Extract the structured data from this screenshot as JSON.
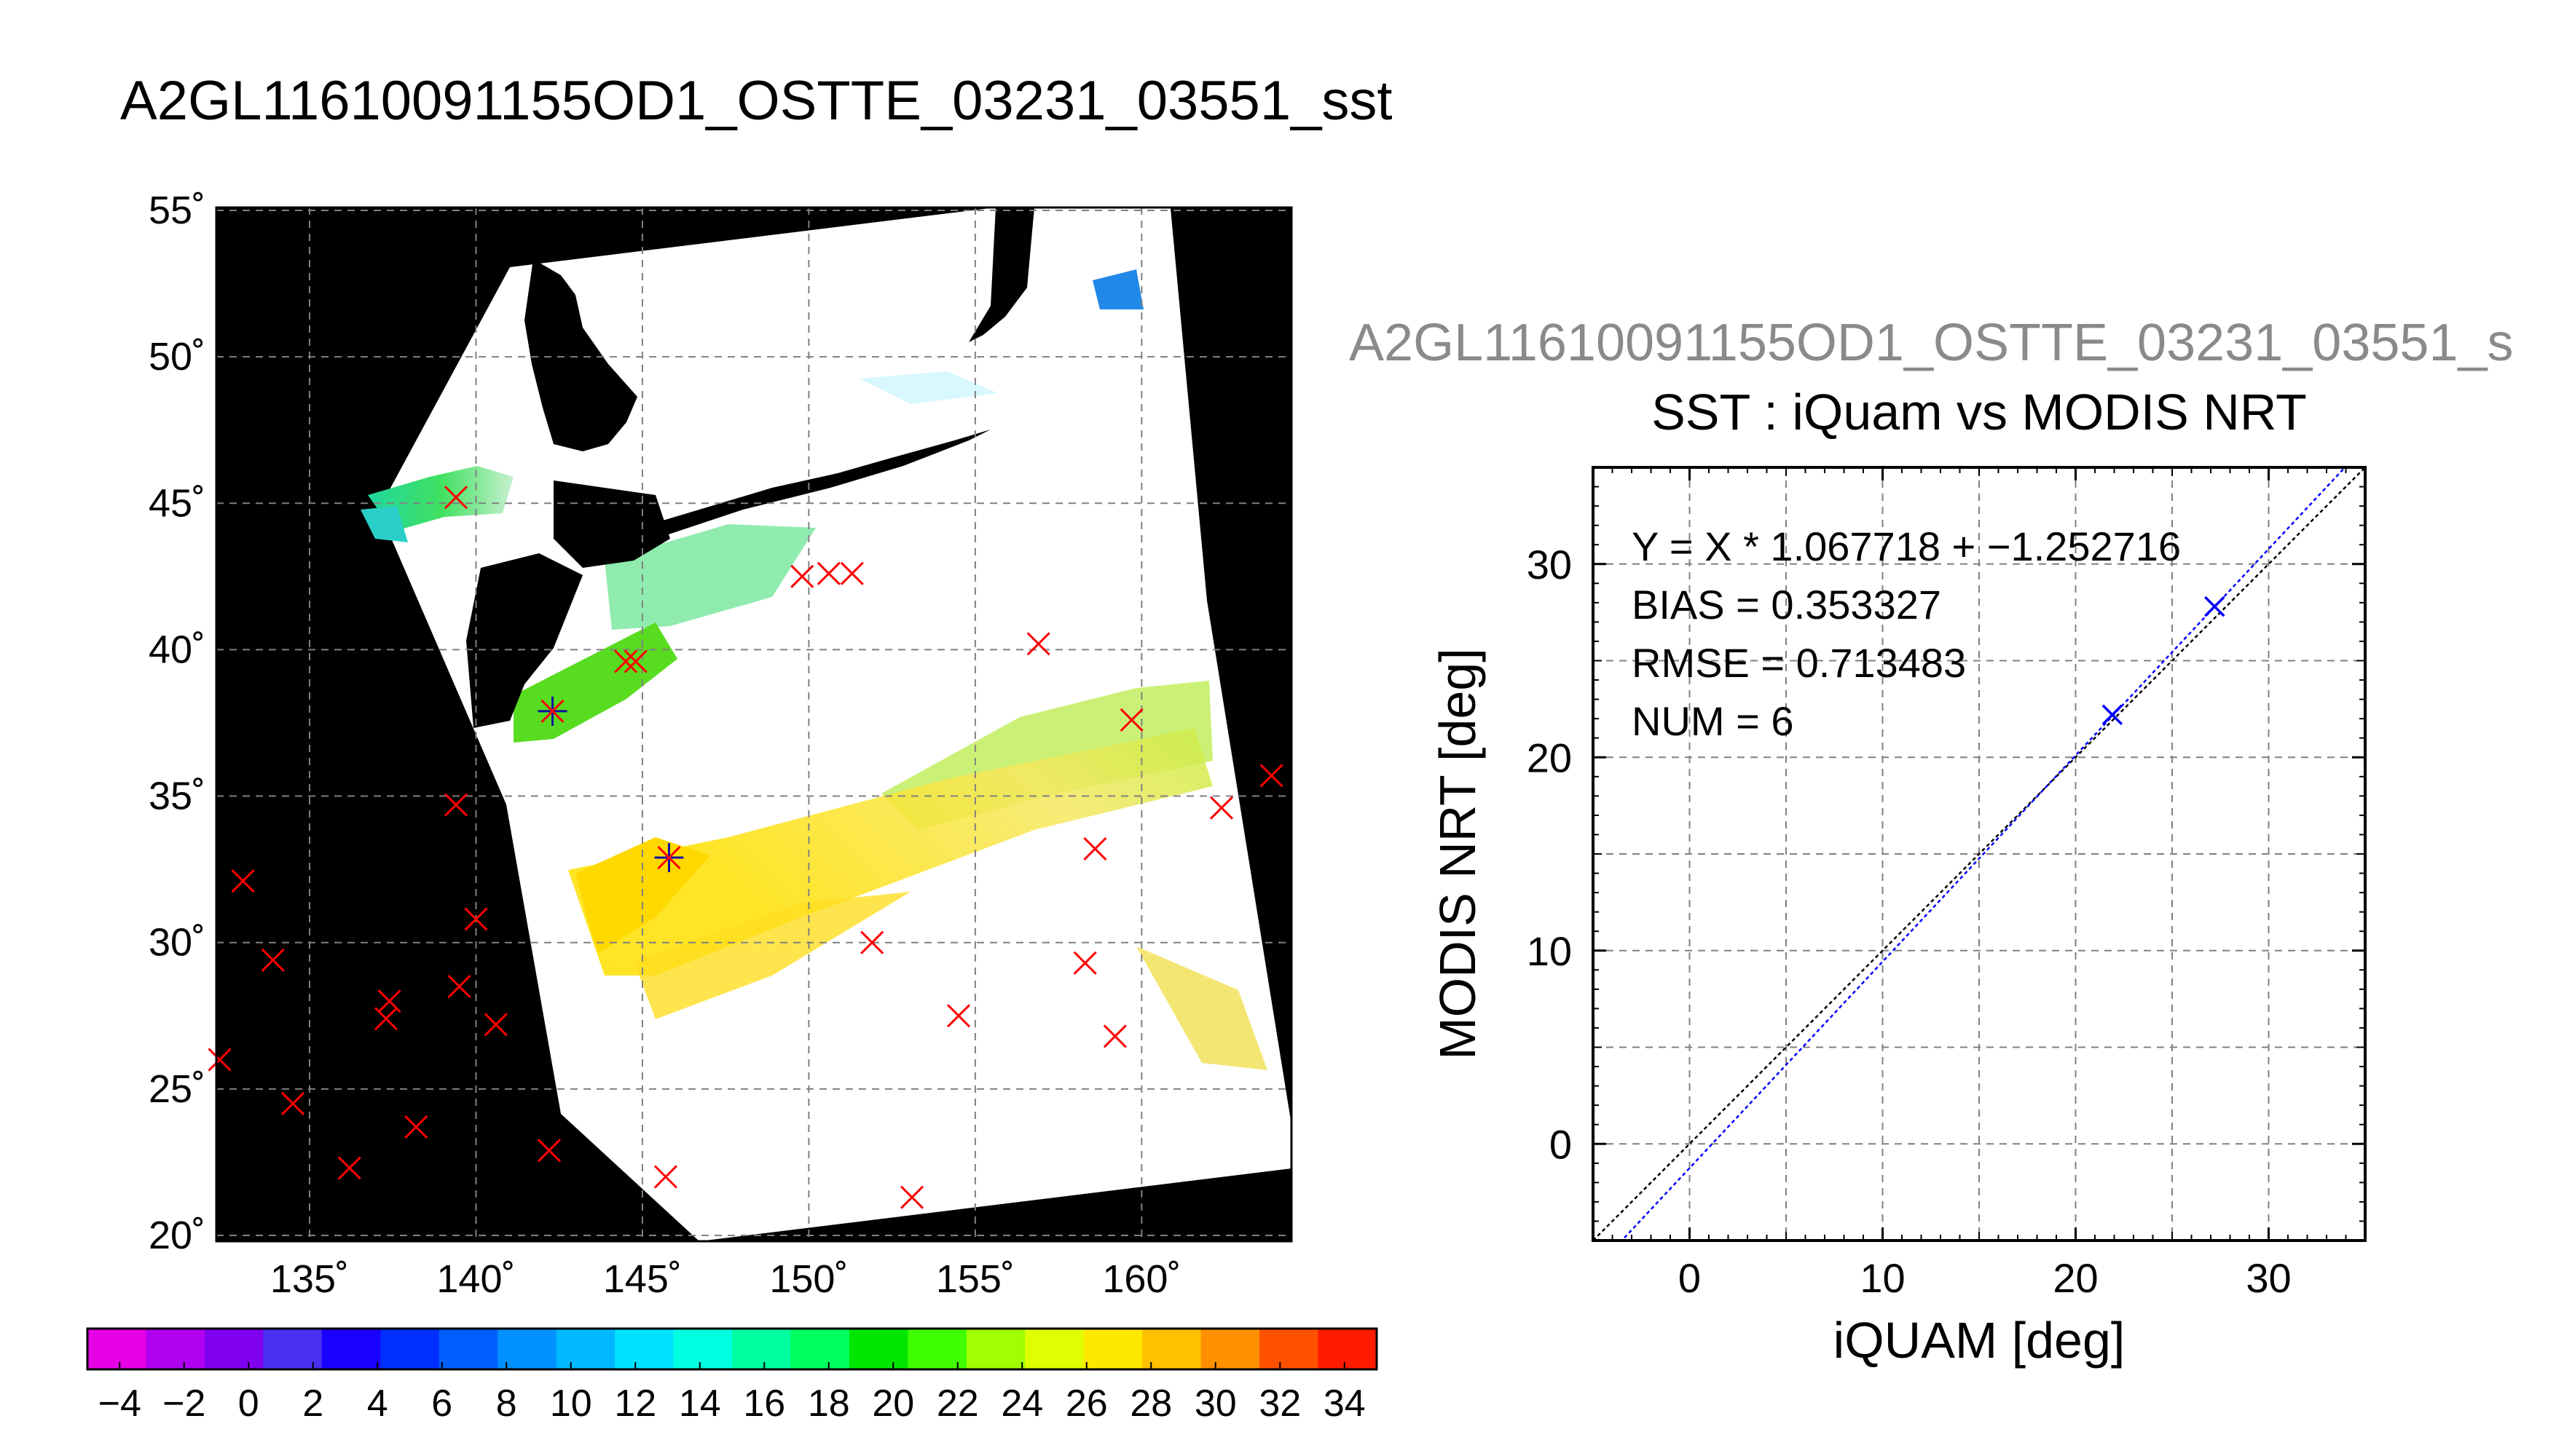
{
  "main_title": "A2GL11610091155OD1_OSTTE_03231_03551_sst",
  "scatter_file_title": "A2GL11610091155OD1_OSTTE_03231_03551_s",
  "chart_data": [
    {
      "type": "map",
      "title": "A2GL11610091155OD1_OSTTE_03231_03551_sst",
      "lon_ticks": [
        "135˚",
        "140˚",
        "145˚",
        "150˚",
        "155˚",
        "160˚"
      ],
      "lat_ticks": [
        "55˚",
        "50˚",
        "45˚",
        "40˚",
        "35˚",
        "30˚",
        "25˚",
        "20˚"
      ],
      "lon_range": [
        132.2,
        164.5
      ],
      "lat_range": [
        19.8,
        55.1
      ],
      "grid": true,
      "colorbar": {
        "min": -5,
        "max": 35,
        "tick_labels": [
          "−4",
          "−2",
          "0",
          "2",
          "4",
          "6",
          "8",
          "10",
          "12",
          "14",
          "16",
          "18",
          "20",
          "22",
          "24",
          "26",
          "28",
          "30",
          "32",
          "34"
        ],
        "colors": [
          "#e600e6",
          "#b000f0",
          "#8000f0",
          "#4a30f0",
          "#1a00ff",
          "#0030ff",
          "#0060ff",
          "#0090ff",
          "#00b8ff",
          "#00e0ff",
          "#00ffe0",
          "#00ffa0",
          "#00ff60",
          "#00e600",
          "#40ff00",
          "#a0ff00",
          "#e0ff00",
          "#ffe800",
          "#ffc000",
          "#ff9000",
          "#ff5000",
          "#ff1a00"
        ]
      },
      "insitu_points": [
        {
          "lon": 139.4,
          "lat": 45.2,
          "matched": false
        },
        {
          "lon": 142.3,
          "lat": 37.9,
          "matched": true
        },
        {
          "lon": 144.5,
          "lat": 39.6,
          "matched": false
        },
        {
          "lon": 144.8,
          "lat": 39.6,
          "matched": false
        },
        {
          "lon": 145.8,
          "lat": 32.9,
          "matched": true
        },
        {
          "lon": 149.8,
          "lat": 42.5,
          "matched": false
        },
        {
          "lon": 150.6,
          "lat": 42.6,
          "matched": false
        },
        {
          "lon": 151.3,
          "lat": 42.6,
          "matched": false
        },
        {
          "lon": 156.9,
          "lat": 40.2,
          "matched": false
        },
        {
          "lon": 159.7,
          "lat": 37.6,
          "matched": false
        },
        {
          "lon": 139.4,
          "lat": 34.7,
          "matched": false
        },
        {
          "lon": 163.9,
          "lat": 35.7,
          "matched": false
        },
        {
          "lon": 162.4,
          "lat": 34.6,
          "matched": false
        },
        {
          "lon": 158.6,
          "lat": 33.2,
          "matched": false
        },
        {
          "lon": 133.0,
          "lat": 32.1,
          "matched": false
        },
        {
          "lon": 140.0,
          "lat": 30.8,
          "matched": false
        },
        {
          "lon": 151.9,
          "lat": 30.0,
          "matched": false
        },
        {
          "lon": 133.9,
          "lat": 29.4,
          "matched": false
        },
        {
          "lon": 158.3,
          "lat": 29.3,
          "matched": false
        },
        {
          "lon": 139.5,
          "lat": 28.5,
          "matched": false
        },
        {
          "lon": 137.4,
          "lat": 28.0,
          "matched": false
        },
        {
          "lon": 137.3,
          "lat": 27.4,
          "matched": false
        },
        {
          "lon": 154.5,
          "lat": 27.5,
          "matched": false
        },
        {
          "lon": 140.6,
          "lat": 27.2,
          "matched": false
        },
        {
          "lon": 159.2,
          "lat": 26.8,
          "matched": false
        },
        {
          "lon": 132.3,
          "lat": 26.0,
          "matched": false
        },
        {
          "lon": 134.5,
          "lat": 24.5,
          "matched": false
        },
        {
          "lon": 138.2,
          "lat": 23.7,
          "matched": false
        },
        {
          "lon": 136.2,
          "lat": 22.3,
          "matched": false
        },
        {
          "lon": 142.2,
          "lat": 22.9,
          "matched": false
        },
        {
          "lon": 145.7,
          "lat": 22.0,
          "matched": false
        },
        {
          "lon": 153.1,
          "lat": 21.3,
          "matched": false
        }
      ]
    },
    {
      "type": "scatter",
      "title": "SST : iQuam vs MODIS NRT",
      "xlabel": "iQUAM [deg]",
      "ylabel": "MODIS NRT [deg]",
      "xlim": [
        -5,
        35
      ],
      "ylim": [
        -5,
        35
      ],
      "x_ticks": [
        "0",
        "10",
        "20",
        "30"
      ],
      "y_ticks": [
        "0",
        "10",
        "20",
        "30"
      ],
      "grid": true,
      "stats": [
        "Y = X * 1.067718 + −1.252716",
        "BIAS = 0.353327",
        "RMSE = 0.713483",
        "NUM = 6"
      ],
      "fit": {
        "slope": 1.067718,
        "intercept": -1.252716,
        "color": "#0000ff"
      },
      "identity_line": {
        "color": "#000000"
      },
      "points": [
        {
          "x": 21.9,
          "y": 22.2
        },
        {
          "x": 27.2,
          "y": 27.8
        }
      ]
    }
  ]
}
